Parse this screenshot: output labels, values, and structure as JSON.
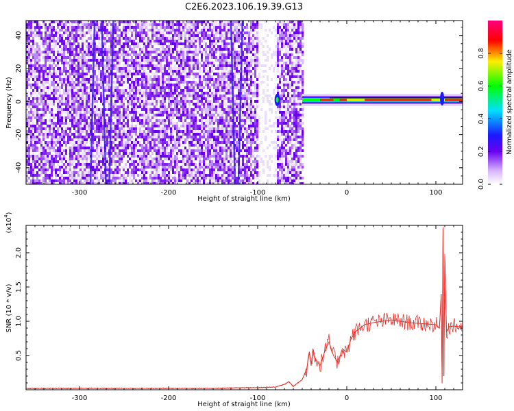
{
  "title": "C2E6.2023.106.19.39.G13",
  "colors": {
    "snr_line": "#e8302a",
    "colormap": [
      "#ffffff",
      "#e8d8fb",
      "#9b4bf0",
      "#6a00f0",
      "#1a1aff",
      "#00e0ff",
      "#00ff00",
      "#ffee00",
      "#ff0000",
      "#ff007f"
    ]
  },
  "chart_data": [
    {
      "type": "heatmap",
      "name": "spectrogram",
      "xlabel": "Height of straight line (km)",
      "ylabel": "Frequency (Hz)",
      "xlim": [
        -360,
        130
      ],
      "ylim": [
        -50,
        49
      ],
      "xticks": [
        -300,
        -200,
        -100,
        0,
        100
      ],
      "yticks": [
        -40,
        -20,
        0,
        20,
        40
      ],
      "colorbar": {
        "label": "Normalized spectral amplitude",
        "range": [
          0,
          1
        ],
        "ticks": [
          "0.0",
          "0.2",
          "0.4",
          "0.6",
          "0.8"
        ]
      },
      "features": {
        "noise_region_km": [
          -360,
          -50
        ],
        "noise_gap_km": [
          -100,
          -80
        ],
        "signal_band_start_km": -50,
        "signal_band_center_hz": 1,
        "vertical_streaks_km": [
          -283,
          -275,
          -262,
          -130,
          -117
        ]
      }
    },
    {
      "type": "line",
      "name": "snr",
      "xlabel": "Height of straight line (km)",
      "ylabel": "SNR (10 * v/v)",
      "yscale_label": "(x10",
      "yscale_exp": "4",
      "yscale_close": ")",
      "xlim": [
        -360,
        130
      ],
      "ylim": [
        0,
        2.4
      ],
      "xticks": [
        -300,
        -200,
        -100,
        0,
        100
      ],
      "yticks": [
        "0.5",
        "1.0",
        "1.5",
        "2.0"
      ],
      "series": [
        {
          "x": [
            -360,
            -300,
            -250,
            -200,
            -150,
            -120,
            -100,
            -80,
            -70,
            -65,
            -60,
            -55,
            -50,
            -45,
            -42,
            -40,
            -38,
            -35,
            -30,
            -25,
            -20,
            -15,
            -10,
            -5,
            0,
            5,
            10,
            15,
            20,
            30,
            40,
            50,
            60,
            70,
            80,
            90,
            100,
            104,
            106,
            107,
            108,
            109,
            110,
            112,
            115,
            120,
            125,
            130
          ],
          "y": [
            0.02,
            0.02,
            0.02,
            0.02,
            0.02,
            0.03,
            0.03,
            0.04,
            0.08,
            0.12,
            0.05,
            0.1,
            0.15,
            0.3,
            0.55,
            0.35,
            0.6,
            0.45,
            0.35,
            0.55,
            0.7,
            0.5,
            0.4,
            0.6,
            0.55,
            0.75,
            0.85,
            0.9,
            0.95,
            0.98,
            1.0,
            1.02,
            1.0,
            0.98,
            0.97,
            0.96,
            0.95,
            0.9,
            1.4,
            0.1,
            2.35,
            0.2,
            1.95,
            0.85,
            0.92,
            0.93,
            0.92,
            0.93
          ]
        }
      ]
    }
  ]
}
